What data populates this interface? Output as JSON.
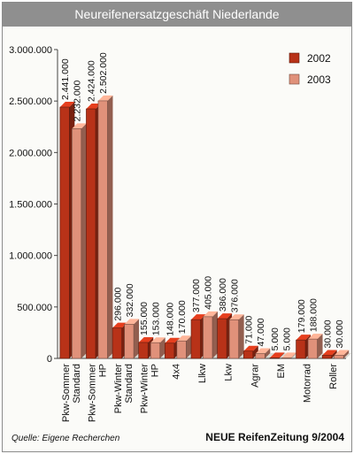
{
  "chart_data": {
    "type": "bar",
    "title": "Neureifenersatzgeschäft Niederlande",
    "categories": [
      "Pkw-Sommer Standard",
      "Pkw-Sommer HP",
      "Pkw-Winter Standard",
      "Pkw-Winter HP",
      "4x4",
      "Llkw",
      "Lkw",
      "Agrar",
      "EM",
      "Motorrad",
      "Roller"
    ],
    "category_lines": [
      [
        "Pkw-Sommer",
        "Standard"
      ],
      [
        "Pkw-Sommer",
        "HP"
      ],
      [
        "Pkw-Winter",
        "Standard"
      ],
      [
        "Pkw-Winter",
        "HP"
      ],
      [
        "4x4"
      ],
      [
        "Llkw"
      ],
      [
        "Lkw"
      ],
      [
        "Agrar"
      ],
      [
        "EM"
      ],
      [
        "Motorrad"
      ],
      [
        "Roller"
      ]
    ],
    "series": [
      {
        "name": "2002",
        "color": "#b83218",
        "values": [
          2441000,
          2424000,
          296000,
          155000,
          148000,
          377000,
          386000,
          71000,
          5000,
          179000,
          30000
        ],
        "labels": [
          "2.441.000",
          "2.424.000",
          "296.000",
          "155.000",
          "148.000",
          "377.000",
          "386.000",
          "71.000",
          "5.000",
          "179.000",
          "30.000"
        ]
      },
      {
        "name": "2003",
        "color": "#e0917a",
        "values": [
          2232000,
          2502000,
          332000,
          153000,
          170000,
          405000,
          376000,
          47000,
          5000,
          188000,
          30000
        ],
        "labels": [
          "2.232.000",
          "2.502.000",
          "332.000",
          "153.000",
          "170.000",
          "405.000",
          "376.000",
          "47.000",
          "5.000",
          "188.000",
          "30.000"
        ]
      }
    ],
    "ylim": [
      0,
      3000000
    ],
    "yticks": [
      0,
      500000,
      1000000,
      1500000,
      2000000,
      2500000,
      3000000
    ],
    "ytick_labels": [
      "0",
      "500.000",
      "1.000.000",
      "1.500.000",
      "2.000.000",
      "2.500.000",
      "3.000.000"
    ],
    "legend_position": "top-right",
    "grid": false
  },
  "footer": {
    "source": "Quelle: Eigene Recherchen",
    "publication": "NEUE ReifenZeitung 9/2004"
  }
}
